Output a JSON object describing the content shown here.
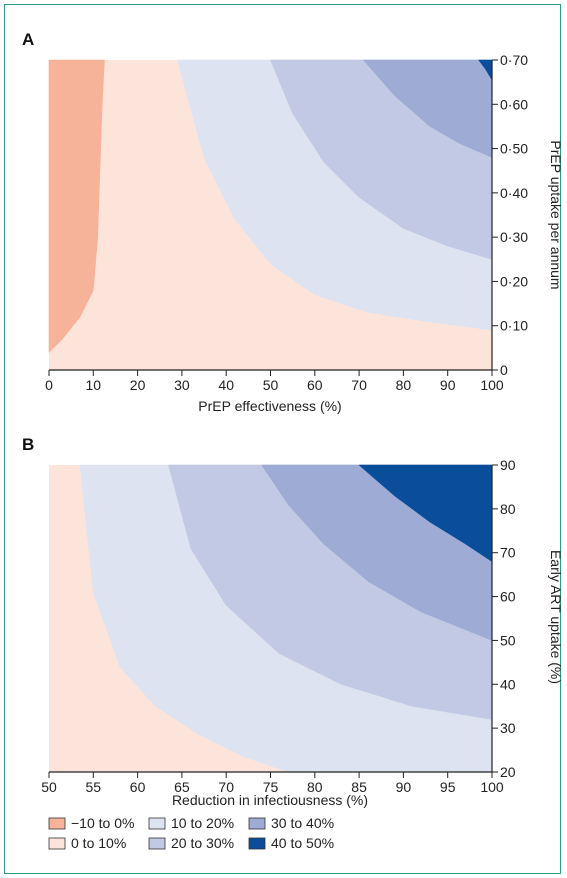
{
  "chart_data": [
    {
      "panel": "A",
      "type": "heatmap",
      "xlabel": "PrEP effectiveness (%)",
      "ylabel": "PrEP uptake per annum",
      "xlim": [
        0,
        100
      ],
      "ylim": [
        0,
        0.7
      ],
      "x_ticks": [
        "0",
        "10",
        "20",
        "30",
        "40",
        "50",
        "60",
        "70",
        "80",
        "90",
        "100"
      ],
      "y_ticks": [
        "0",
        "0·10",
        "0·20",
        "0·30",
        "0·40",
        "0·50",
        "0·60",
        "0·70"
      ],
      "regions": [
        {
          "band": "−10 to 0%",
          "color": "#f7b39a",
          "boundary_x": [
            0,
            3,
            7,
            10,
            11,
            11.5,
            12,
            12.5
          ],
          "boundary_y": [
            0.04,
            0.07,
            0.12,
            0.18,
            0.3,
            0.45,
            0.6,
            0.7
          ]
        },
        {
          "band": "10 to 20%",
          "color": "#dde3f1",
          "boundary_x": [
            29,
            35,
            42,
            50,
            60,
            72,
            85,
            100
          ],
          "boundary_y": [
            0.7,
            0.48,
            0.34,
            0.24,
            0.17,
            0.13,
            0.11,
            0.09
          ]
        },
        {
          "band": "20 to 30%",
          "color": "#c2c9e4",
          "boundary_x": [
            50,
            55,
            62,
            70,
            80,
            90,
            100
          ],
          "boundary_y": [
            0.7,
            0.58,
            0.47,
            0.39,
            0.32,
            0.28,
            0.25
          ]
        },
        {
          "band": "30 to 40%",
          "color": "#9eabd4",
          "boundary_x": [
            71,
            78,
            86,
            93,
            100
          ],
          "boundary_y": [
            0.7,
            0.62,
            0.55,
            0.51,
            0.48
          ]
        },
        {
          "band": "40 to 50%",
          "color": "#0a4e9b",
          "boundary_x": [
            97,
            98.5,
            100
          ],
          "boundary_y": [
            0.7,
            0.68,
            0.655
          ]
        }
      ]
    },
    {
      "panel": "B",
      "type": "heatmap",
      "xlabel": "Reduction in infectiousness (%)",
      "ylabel": "Early ART uptake (%)",
      "xlim": [
        50,
        100
      ],
      "ylim": [
        20,
        90
      ],
      "x_ticks": [
        "50",
        "55",
        "60",
        "65",
        "70",
        "75",
        "80",
        "85",
        "90",
        "95",
        "100"
      ],
      "y_ticks": [
        "20",
        "30",
        "40",
        "50",
        "60",
        "70",
        "80",
        "90"
      ],
      "regions": [
        {
          "band": "10 to 20%",
          "color": "#dde3f1",
          "boundary_x": [
            53.5,
            55,
            58,
            62,
            67,
            72,
            77
          ],
          "boundary_y": [
            90,
            61,
            44,
            35,
            28.5,
            23.5,
            20
          ]
        },
        {
          "band": "20 to 30%",
          "color": "#c2c9e4",
          "boundary_x": [
            63.5,
            66,
            70,
            76,
            83,
            91,
            100
          ],
          "boundary_y": [
            90,
            71,
            58,
            47,
            40,
            35,
            32
          ]
        },
        {
          "band": "30 to 40%",
          "color": "#9eabd4",
          "boundary_x": [
            74,
            77,
            81,
            86,
            92,
            100
          ],
          "boundary_y": [
            90,
            81,
            72,
            63.5,
            56.5,
            50
          ]
        },
        {
          "band": "40 to 50%",
          "color": "#0a4e9b",
          "boundary_x": [
            85,
            89,
            93,
            97,
            100
          ],
          "boundary_y": [
            90,
            83,
            77,
            72,
            68
          ]
        }
      ]
    }
  ],
  "legend": [
    {
      "label": "−10 to 0%",
      "color": "#f7b39a"
    },
    {
      "label": "0 to 10%",
      "color": "#fde4da"
    },
    {
      "label": "10 to 20%",
      "color": "#dde3f1"
    },
    {
      "label": "20 to 30%",
      "color": "#c2c9e4"
    },
    {
      "label": "30 to 40%",
      "color": "#9eabd4"
    },
    {
      "label": "40 to 50%",
      "color": "#0a4e9b"
    }
  ],
  "base_color": "#fde4da"
}
